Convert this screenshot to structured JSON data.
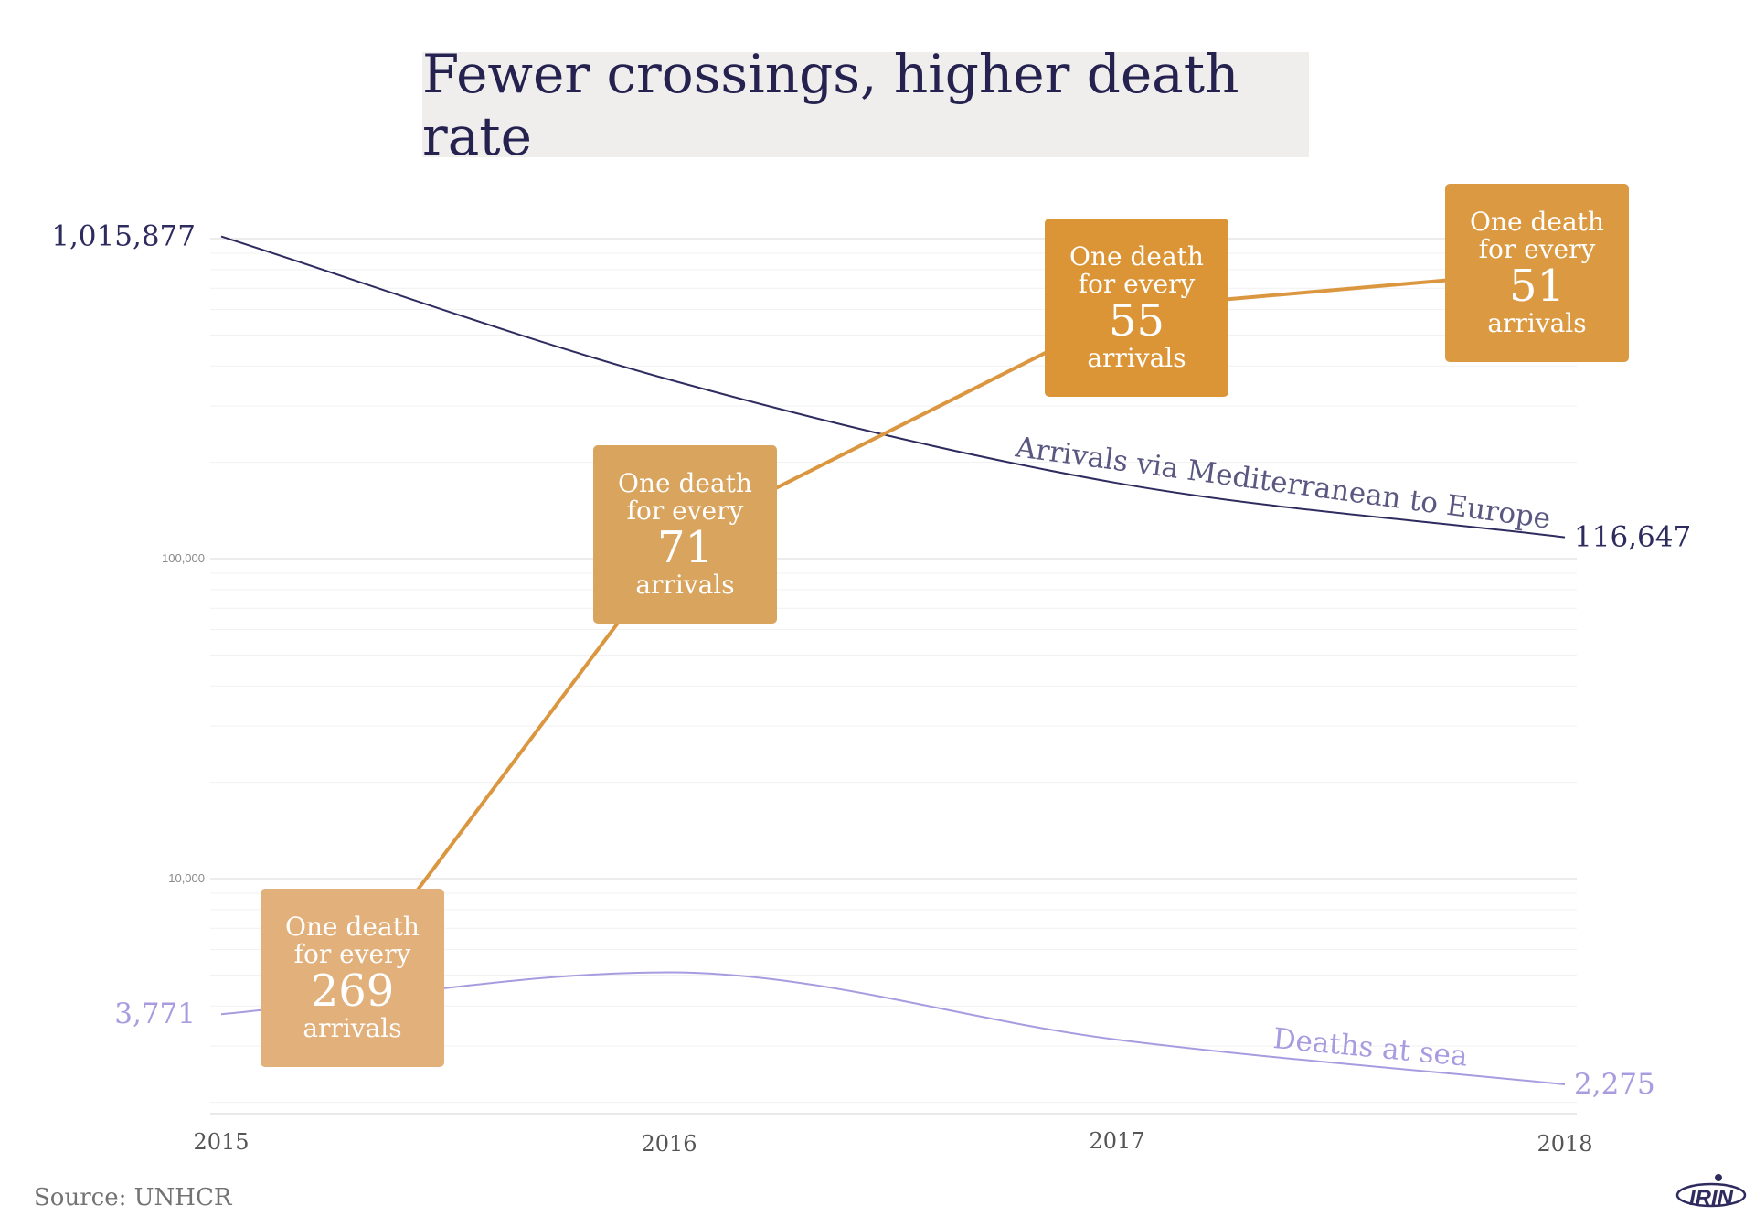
{
  "title": "Fewer crossings, higher death rate",
  "source": "Source: UNHCR",
  "logo_text": "IRIN",
  "colors": {
    "arrivals": "#2e2b5f",
    "deaths": "#a99be0",
    "ratio_line": "#db9640",
    "box_2015": "#e2b07a",
    "box_2016": "#d8a45e",
    "box_2017": "#db9536",
    "box_2018": "#db9a42",
    "title_bg": "#efeeed",
    "title_text": "#25224f"
  },
  "chart_data": {
    "type": "line",
    "title": "Fewer crossings, higher death rate",
    "x": [
      2015,
      2016,
      2017,
      2018
    ],
    "y_scale": "log",
    "ylim": [
      2000,
      1200000
    ],
    "y_ticks": [
      {
        "value": 10000,
        "label": "10,000"
      },
      {
        "value": 100000,
        "label": "100,000"
      }
    ],
    "grid": true,
    "series": [
      {
        "name": "Arrivals via Mediterranean to Europe",
        "values": [
          1015877,
          362753,
          172301,
          116647
        ],
        "start_label": "1,015,877",
        "end_label": "116,647"
      },
      {
        "name": "Deaths at sea",
        "values": [
          3771,
          5096,
          3139,
          2275
        ],
        "start_label": "3,771",
        "end_label": "2,275"
      }
    ],
    "ratio_boxes": [
      {
        "year": 2015,
        "ratio": 269,
        "line1": "One death",
        "line2": "for every",
        "number": "269",
        "line3": "arrivals"
      },
      {
        "year": 2016,
        "ratio": 71,
        "line1": "One death",
        "line2": "for every",
        "number": "71",
        "line3": "arrivals"
      },
      {
        "year": 2017,
        "ratio": 55,
        "line1": "One death",
        "line2": "for every",
        "number": "55",
        "line3": "arrivals"
      },
      {
        "year": 2018,
        "ratio": 51,
        "line1": "One death",
        "line2": "for every",
        "number": "51",
        "line3": "arrivals"
      }
    ]
  }
}
